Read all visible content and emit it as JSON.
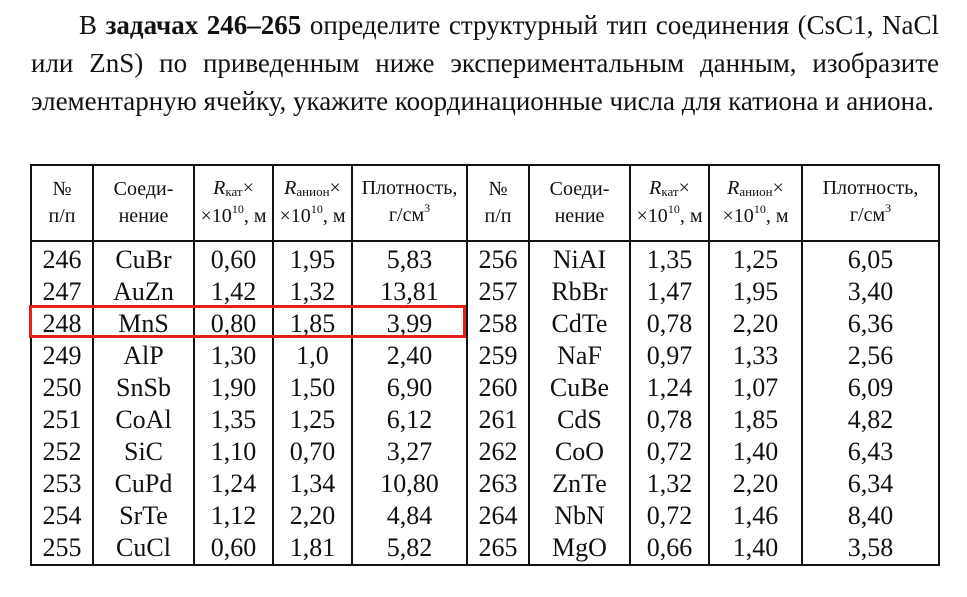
{
  "intro": {
    "lead": "В ",
    "bold": "задачах 246–265",
    "text": " определите структурный тип соединения (CsC1, NaCl или ZnS) по приведенным ниже экспериментальным данным, изобразите элементарную ячейку, укажите координационные числа для катиона и аниона."
  },
  "table": {
    "headers": {
      "num_line1": "№",
      "num_line2": "п/п",
      "compound_line1": "Соеди-",
      "compound_line2": "нение",
      "r_symbol": "R",
      "rcat_sub": "кат",
      "rani_sub": "анион",
      "times": "×",
      "scale_base": "×10",
      "scale_exp": "10",
      "scale_unit": ", м",
      "density_line1": "Плотность,",
      "density_unit": "г/см",
      "density_exp": "3"
    },
    "rows": [
      {
        "n1": "246",
        "c1": "CuBr",
        "rc1": "0,60",
        "ra1": "1,95",
        "d1": "5,83",
        "n2": "256",
        "c2": "NiAI",
        "rc2": "1,35",
        "ra2": "1,25",
        "d2": "6,05"
      },
      {
        "n1": "247",
        "c1": "AuZn",
        "rc1": "1,42",
        "ra1": "1,32",
        "d1": "13,81",
        "n2": "257",
        "c2": "RbBr",
        "rc2": "1,47",
        "ra2": "1,95",
        "d2": "3,40"
      },
      {
        "n1": "248",
        "c1": "MnS",
        "rc1": "0,80",
        "ra1": "1,85",
        "d1": "3,99",
        "n2": "258",
        "c2": "CdTe",
        "rc2": "0,78",
        "ra2": "2,20",
        "d2": "6,36"
      },
      {
        "n1": "249",
        "c1": "AlP",
        "rc1": "1,30",
        "ra1": "1,0",
        "d1": "2,40",
        "n2": "259",
        "c2": "NaF",
        "rc2": "0,97",
        "ra2": "1,33",
        "d2": "2,56"
      },
      {
        "n1": "250",
        "c1": "SnSb",
        "rc1": "1,90",
        "ra1": "1,50",
        "d1": "6,90",
        "n2": "260",
        "c2": "CuBe",
        "rc2": "1,24",
        "ra2": "1,07",
        "d2": "6,09"
      },
      {
        "n1": "251",
        "c1": "CoAl",
        "rc1": "1,35",
        "ra1": "1,25",
        "d1": "6,12",
        "n2": "261",
        "c2": "CdS",
        "rc2": "0,78",
        "ra2": "1,85",
        "d2": "4,82"
      },
      {
        "n1": "252",
        "c1": "SiC",
        "rc1": "1,10",
        "ra1": "0,70",
        "d1": "3,27",
        "n2": "262",
        "c2": "CoO",
        "rc2": "0,72",
        "ra2": "1,40",
        "d2": "6,43"
      },
      {
        "n1": "253",
        "c1": "CuPd",
        "rc1": "1,24",
        "ra1": "1,34",
        "d1": "10,80",
        "n2": "263",
        "c2": "ZnTe",
        "rc2": "1,32",
        "ra2": "2,20",
        "d2": "6,34"
      },
      {
        "n1": "254",
        "c1": "SrTe",
        "rc1": "1,12",
        "ra1": "2,20",
        "d1": "4,84",
        "n2": "264",
        "c2": "NbN",
        "rc2": "0,72",
        "ra2": "1,46",
        "d2": "8,40"
      },
      {
        "n1": "255",
        "c1": "CuCl",
        "rc1": "0,60",
        "ra1": "1,81",
        "d1": "5,82",
        "n2": "265",
        "c2": "MgO",
        "rc2": "0,66",
        "ra2": "1,40",
        "d2": "3,58"
      }
    ]
  },
  "highlight": {
    "row_number": "248",
    "color": "#e3201b"
  }
}
